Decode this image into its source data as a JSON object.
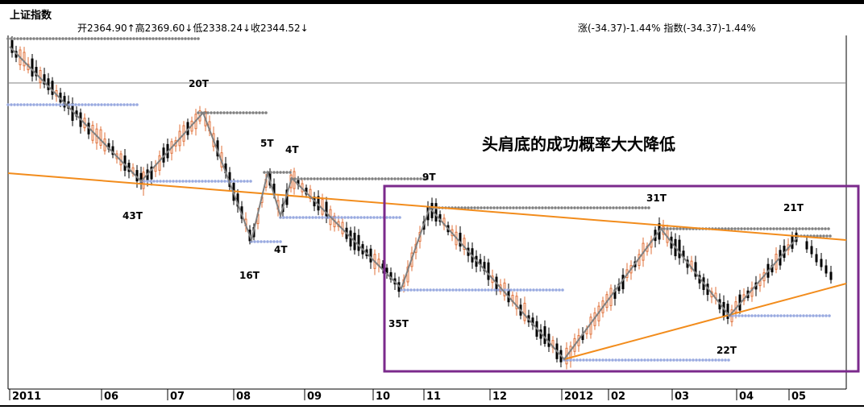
{
  "header": {
    "title": "上证指数",
    "ohlc_text": "开2364.90↑高2369.60↓低2338.24↓收2344.52↓",
    "change_text": "涨(-34.37)-1.44% 指数(-34.37)-1.44%"
  },
  "annotation": "头肩底的成功概率大大降低",
  "colors": {
    "up": "#e0703a",
    "down": "#000000",
    "trend_line": "#f28c1c",
    "zigzag": "#808080",
    "resistance_dots": "#808080",
    "support_dots": "#99aae0",
    "highlight_box": "#7b2a8c"
  },
  "chart_data": {
    "type": "candlestick",
    "x_ticks": [
      "2011",
      "06",
      "07",
      "08",
      "09",
      "10",
      "11",
      "12",
      "2012",
      "02",
      "03",
      "04",
      "05"
    ],
    "wave_labels": [
      "20T",
      "5T",
      "4T",
      "9T",
      "43T",
      "16T",
      "4T",
      "35T",
      "31T",
      "22T",
      "21T"
    ],
    "pattern": "head-and-shoulders bottom within falling trend",
    "grid": false
  }
}
